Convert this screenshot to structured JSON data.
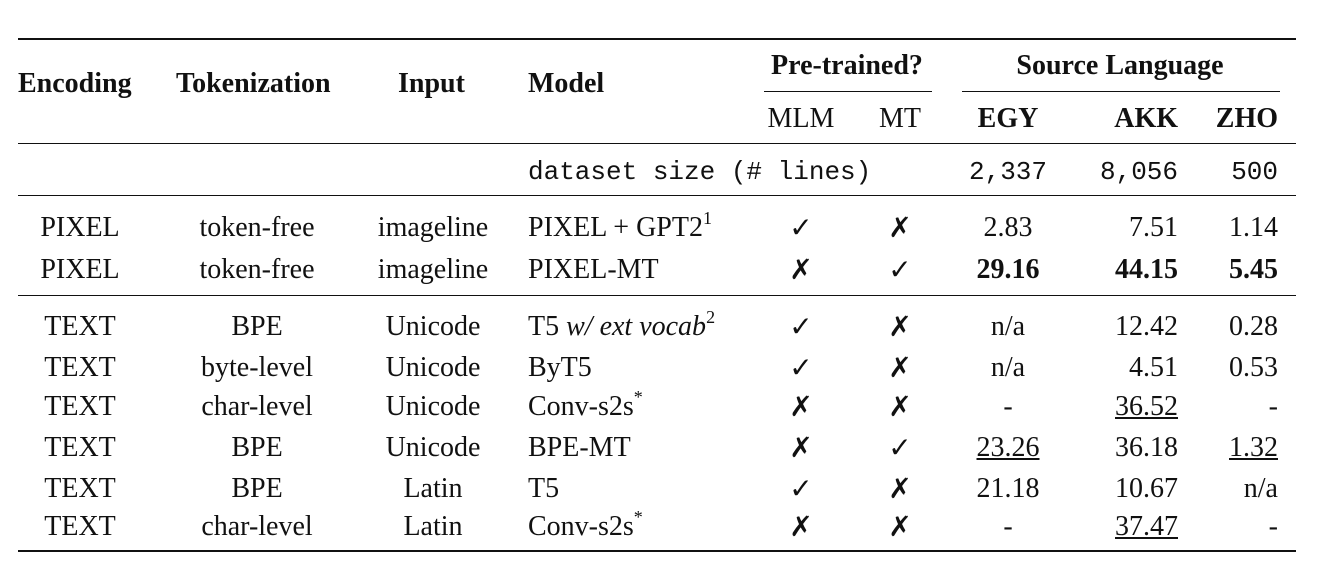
{
  "header": {
    "encoding": "Encoding",
    "tokenization": "Tokenization",
    "input": "Input",
    "model": "Model",
    "pretrained": "Pre-trained?",
    "mlm": "MLM",
    "mt": "MT",
    "source_language": "Source Language",
    "egy": "EGY",
    "akk": "AKK",
    "zho": "ZHO"
  },
  "dataset_row": {
    "label": "dataset size (# lines)",
    "egy": "2,337",
    "akk": "8,056",
    "zho": "500"
  },
  "symbols": {
    "check": "✓",
    "cross": "✗"
  },
  "rows": [
    {
      "encoding": "PIXEL",
      "tokenization": "token-free",
      "input": "imageline",
      "model": "PIXEL + GPT2",
      "model_sup": "1",
      "mlm": "✓",
      "mt": "✗",
      "egy": "2.83",
      "akk": "7.51",
      "zho": "1.14"
    },
    {
      "encoding": "PIXEL",
      "tokenization": "token-free",
      "input": "imageline",
      "model": "PIXEL-MT",
      "mlm": "✗",
      "mt": "✓",
      "egy": "29.16",
      "akk": "44.15",
      "zho": "5.45"
    },
    {
      "encoding": "TEXT",
      "tokenization": "BPE",
      "input": "Unicode",
      "model": "T5 ",
      "model_italic": "w/ ext vocab",
      "model_sup": "2",
      "mlm": "✓",
      "mt": "✗",
      "egy": "n/a",
      "akk": "12.42",
      "zho": "0.28"
    },
    {
      "encoding": "TEXT",
      "tokenization": "byte-level",
      "input": "Unicode",
      "model": "ByT5",
      "mlm": "✓",
      "mt": "✗",
      "egy": "n/a",
      "akk": "4.51",
      "zho": "0.53"
    },
    {
      "encoding": "TEXT",
      "tokenization": "char-level",
      "input": "Unicode",
      "model": "Conv-s2s",
      "model_sup": "*",
      "mlm": "✗",
      "mt": "✗",
      "egy": "-",
      "akk": "36.52",
      "zho": "-"
    },
    {
      "encoding": "TEXT",
      "tokenization": "BPE",
      "input": "Unicode",
      "model": "BPE-MT",
      "mlm": "✗",
      "mt": "✓",
      "egy": "23.26",
      "akk": "36.18",
      "zho": "1.32"
    },
    {
      "encoding": "TEXT",
      "tokenization": "BPE",
      "input": "Latin",
      "model": "T5",
      "mlm": "✓",
      "mt": "✗",
      "egy": "21.18",
      "akk": "10.67",
      "zho": "n/a"
    },
    {
      "encoding": "TEXT",
      "tokenization": "char-level",
      "input": "Latin",
      "model": "Conv-s2s",
      "model_sup": "*",
      "mlm": "✗",
      "mt": "✗",
      "egy": "-",
      "akk": "37.47",
      "zho": "-"
    }
  ]
}
